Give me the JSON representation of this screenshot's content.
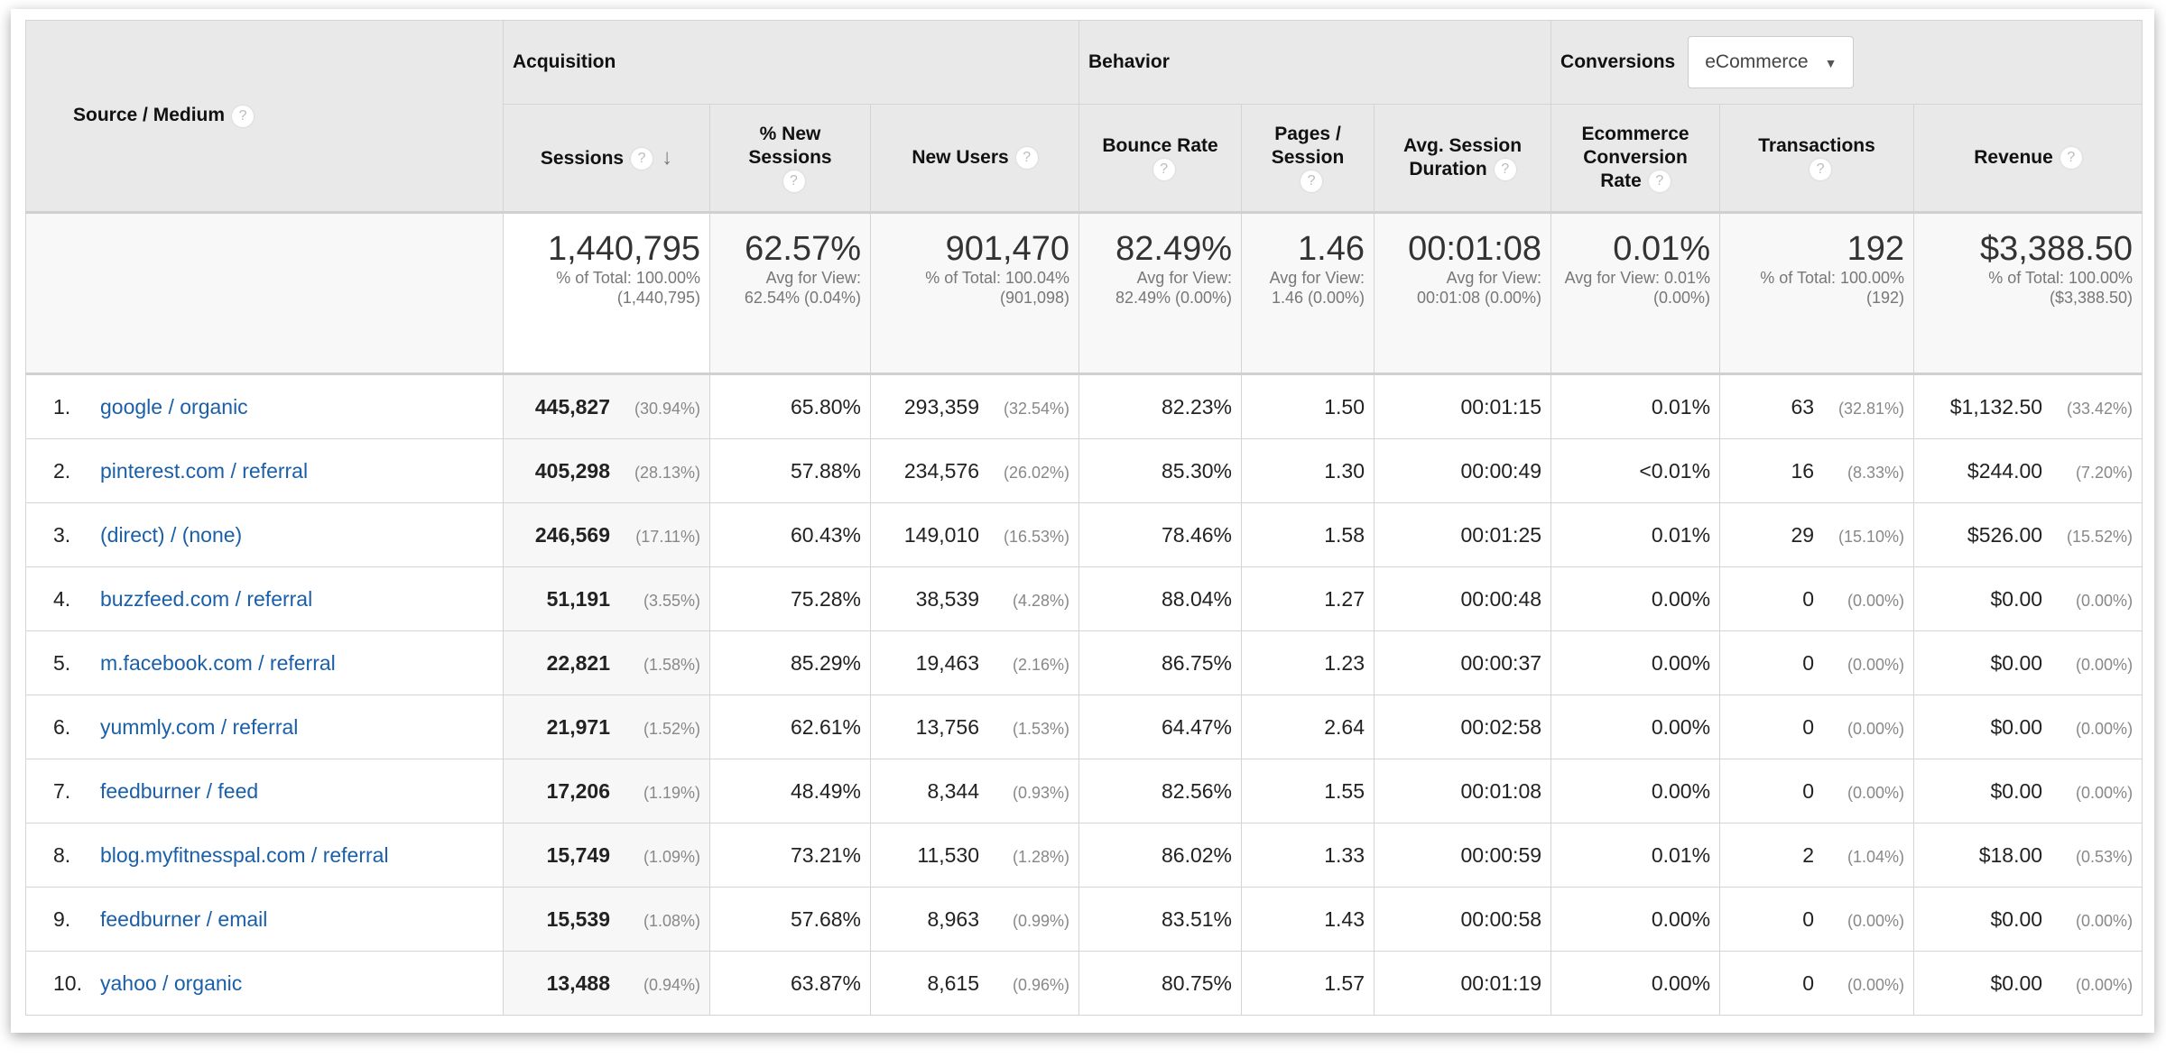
{
  "header": {
    "source_medium": "Source / Medium",
    "groups": {
      "acquisition": "Acquisition",
      "behavior": "Behavior",
      "conversions": "Conversions"
    },
    "conversions_select": {
      "value": "eCommerce"
    },
    "columns": {
      "sessions": "Sessions",
      "pct_new_sessions": "% New Sessions",
      "new_users": "New Users",
      "bounce_rate": "Bounce Rate",
      "pages_session": "Pages / Session",
      "avg_duration": "Avg. Session Duration",
      "ecr": "Ecommerce Conversion Rate",
      "transactions": "Transactions",
      "revenue": "Revenue"
    },
    "help_icon": "?",
    "sort_icon": "↓"
  },
  "totals": [
    {
      "value": "1,440,795",
      "sub": "% of Total: 100.00% (1,440,795)"
    },
    {
      "value": "62.57%",
      "sub": "Avg for View: 62.54% (0.04%)"
    },
    {
      "value": "901,470",
      "sub": "% of Total: 100.04% (901,098)"
    },
    {
      "value": "82.49%",
      "sub": "Avg for View: 82.49% (0.00%)"
    },
    {
      "value": "1.46",
      "sub": "Avg for View: 1.46 (0.00%)"
    },
    {
      "value": "00:01:08",
      "sub": "Avg for View: 00:01:08 (0.00%)"
    },
    {
      "value": "0.01%",
      "sub": "Avg for View: 0.01% (0.00%)"
    },
    {
      "value": "192",
      "sub": "% of Total: 100.00% (192)"
    },
    {
      "value": "$3,388.50",
      "sub": "% of Total: 100.00% ($3,388.50)"
    }
  ],
  "rows": [
    {
      "n": "1.",
      "source": "google / organic",
      "sessions": "445,827",
      "sessions_pct": "(30.94%)",
      "new_sess": "65.80%",
      "new_users": "293,359",
      "new_users_pct": "(32.54%)",
      "bounce": "82.23%",
      "pages": "1.50",
      "dur": "00:01:15",
      "ecr": "0.01%",
      "trans": "63",
      "trans_pct": "(32.81%)",
      "rev": "$1,132.50",
      "rev_pct": "(33.42%)"
    },
    {
      "n": "2.",
      "source": "pinterest.com / referral",
      "sessions": "405,298",
      "sessions_pct": "(28.13%)",
      "new_sess": "57.88%",
      "new_users": "234,576",
      "new_users_pct": "(26.02%)",
      "bounce": "85.30%",
      "pages": "1.30",
      "dur": "00:00:49",
      "ecr": "<0.01%",
      "trans": "16",
      "trans_pct": "(8.33%)",
      "rev": "$244.00",
      "rev_pct": "(7.20%)"
    },
    {
      "n": "3.",
      "source": "(direct) / (none)",
      "sessions": "246,569",
      "sessions_pct": "(17.11%)",
      "new_sess": "60.43%",
      "new_users": "149,010",
      "new_users_pct": "(16.53%)",
      "bounce": "78.46%",
      "pages": "1.58",
      "dur": "00:01:25",
      "ecr": "0.01%",
      "trans": "29",
      "trans_pct": "(15.10%)",
      "rev": "$526.00",
      "rev_pct": "(15.52%)"
    },
    {
      "n": "4.",
      "source": "buzzfeed.com / referral",
      "sessions": "51,191",
      "sessions_pct": "(3.55%)",
      "new_sess": "75.28%",
      "new_users": "38,539",
      "new_users_pct": "(4.28%)",
      "bounce": "88.04%",
      "pages": "1.27",
      "dur": "00:00:48",
      "ecr": "0.00%",
      "trans": "0",
      "trans_pct": "(0.00%)",
      "rev": "$0.00",
      "rev_pct": "(0.00%)"
    },
    {
      "n": "5.",
      "source": "m.facebook.com / referral",
      "sessions": "22,821",
      "sessions_pct": "(1.58%)",
      "new_sess": "85.29%",
      "new_users": "19,463",
      "new_users_pct": "(2.16%)",
      "bounce": "86.75%",
      "pages": "1.23",
      "dur": "00:00:37",
      "ecr": "0.00%",
      "trans": "0",
      "trans_pct": "(0.00%)",
      "rev": "$0.00",
      "rev_pct": "(0.00%)"
    },
    {
      "n": "6.",
      "source": "yummly.com / referral",
      "sessions": "21,971",
      "sessions_pct": "(1.52%)",
      "new_sess": "62.61%",
      "new_users": "13,756",
      "new_users_pct": "(1.53%)",
      "bounce": "64.47%",
      "pages": "2.64",
      "dur": "00:02:58",
      "ecr": "0.00%",
      "trans": "0",
      "trans_pct": "(0.00%)",
      "rev": "$0.00",
      "rev_pct": "(0.00%)"
    },
    {
      "n": "7.",
      "source": "feedburner / feed",
      "sessions": "17,206",
      "sessions_pct": "(1.19%)",
      "new_sess": "48.49%",
      "new_users": "8,344",
      "new_users_pct": "(0.93%)",
      "bounce": "82.56%",
      "pages": "1.55",
      "dur": "00:01:08",
      "ecr": "0.00%",
      "trans": "0",
      "trans_pct": "(0.00%)",
      "rev": "$0.00",
      "rev_pct": "(0.00%)"
    },
    {
      "n": "8.",
      "source": "blog.myfitnesspal.com / referral",
      "sessions": "15,749",
      "sessions_pct": "(1.09%)",
      "new_sess": "73.21%",
      "new_users": "11,530",
      "new_users_pct": "(1.28%)",
      "bounce": "86.02%",
      "pages": "1.33",
      "dur": "00:00:59",
      "ecr": "0.01%",
      "trans": "2",
      "trans_pct": "(1.04%)",
      "rev": "$18.00",
      "rev_pct": "(0.53%)"
    },
    {
      "n": "9.",
      "source": "feedburner / email",
      "sessions": "15,539",
      "sessions_pct": "(1.08%)",
      "new_sess": "57.68%",
      "new_users": "8,963",
      "new_users_pct": "(0.99%)",
      "bounce": "83.51%",
      "pages": "1.43",
      "dur": "00:00:58",
      "ecr": "0.00%",
      "trans": "0",
      "trans_pct": "(0.00%)",
      "rev": "$0.00",
      "rev_pct": "(0.00%)"
    },
    {
      "n": "10.",
      "source": "yahoo / organic",
      "sessions": "13,488",
      "sessions_pct": "(0.94%)",
      "new_sess": "63.87%",
      "new_users": "8,615",
      "new_users_pct": "(0.96%)",
      "bounce": "80.75%",
      "pages": "1.57",
      "dur": "00:01:19",
      "ecr": "0.00%",
      "trans": "0",
      "trans_pct": "(0.00%)",
      "rev": "$0.00",
      "rev_pct": "(0.00%)"
    }
  ]
}
